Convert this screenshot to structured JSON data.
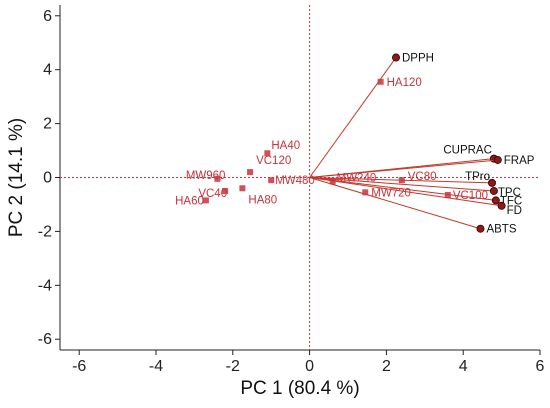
{
  "chart_data": {
    "type": "scatter",
    "subtype": "biplot",
    "xlabel": "PC 1  (80.4 %)",
    "ylabel": "PC 2  (14.1 %)",
    "xlim": [
      -6.5,
      6
    ],
    "ylim": [
      -6.4,
      6.4
    ],
    "xticks": [
      -6,
      -4,
      -2,
      0,
      2,
      4,
      6
    ],
    "yticks": [
      -6,
      -4,
      -2,
      0,
      2,
      4,
      6
    ],
    "grid": false,
    "zero_lines": "dotted-red",
    "colors": {
      "scores": "#c8323c",
      "loadings": "#c0392b",
      "loading_point": "#8b1a1a",
      "axis": "#222222"
    },
    "scores": [
      {
        "label": "HA120",
        "x": 1.85,
        "y": 3.55
      },
      {
        "label": "HA40",
        "x": -1.1,
        "y": 0.9
      },
      {
        "label": "VC120",
        "x": -1.55,
        "y": 0.2
      },
      {
        "label": "MW960",
        "x": -2.4,
        "y": -0.05
      },
      {
        "label": "MW480",
        "x": -1.0,
        "y": -0.1
      },
      {
        "label": "HA80",
        "x": -1.75,
        "y": -0.4
      },
      {
        "label": "VC40",
        "x": -2.2,
        "y": -0.5
      },
      {
        "label": "HA60",
        "x": -2.7,
        "y": -0.85
      },
      {
        "label": "MW240",
        "x": 0.6,
        "y": -0.15
      },
      {
        "label": "VC80",
        "x": 2.4,
        "y": -0.1
      },
      {
        "label": "MW720",
        "x": 1.45,
        "y": -0.55
      },
      {
        "label": "VC100",
        "x": 3.6,
        "y": -0.65
      }
    ],
    "loadings": [
      {
        "label": "DPPH",
        "x": 2.25,
        "y": 4.45
      },
      {
        "label": "CUPRAC",
        "x": 4.8,
        "y": 0.7
      },
      {
        "label": "FRAP",
        "x": 4.9,
        "y": 0.65
      },
      {
        "label": "TPro",
        "x": 4.75,
        "y": -0.2
      },
      {
        "label": "TPC",
        "x": 4.8,
        "y": -0.5
      },
      {
        "label": "TFC",
        "x": 4.85,
        "y": -0.85
      },
      {
        "label": "FD",
        "x": 5.0,
        "y": -1.05
      },
      {
        "label": "ABTS",
        "x": 4.45,
        "y": -1.9
      }
    ]
  }
}
